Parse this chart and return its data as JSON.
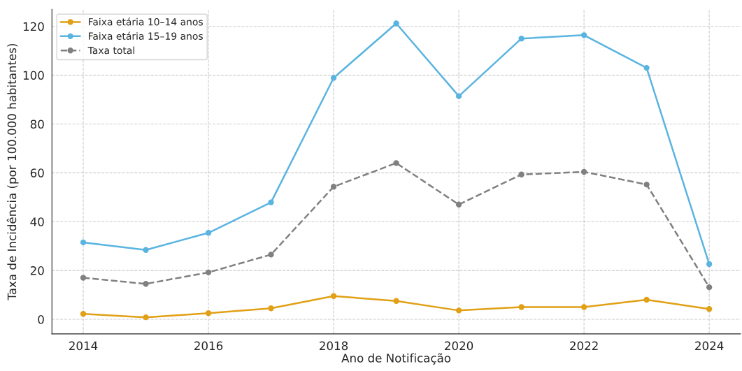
{
  "chart_data": {
    "type": "line",
    "xlabel": "Ano de Notificação",
    "ylabel": "Taxa de Incidência (por 100.000 habitantes)",
    "x": [
      2014,
      2015,
      2016,
      2017,
      2018,
      2019,
      2020,
      2021,
      2022,
      2023,
      2024
    ],
    "series": [
      {
        "name": "Faixa etária 10–14 anos",
        "color": "#e1a015",
        "values": [
          2.2,
          0.8,
          2.5,
          4.5,
          9.5,
          7.5,
          3.6,
          5,
          5,
          8,
          4.2
        ]
      },
      {
        "name": "Faixa etária 15–19 anos",
        "color": "#5ab4e0",
        "values": [
          31.5,
          28.4,
          35.4,
          47.9,
          98.9,
          121.2,
          91.4,
          115,
          116.4,
          103,
          22.6
        ]
      },
      {
        "name": "Taxa total",
        "color": "#808080",
        "line_style": "dashed",
        "values": [
          17,
          14.5,
          19.2,
          26.5,
          54.3,
          64,
          47,
          59.3,
          60.4,
          55.2,
          13.1
        ]
      }
    ],
    "marker": "circle",
    "line_style": "solid",
    "xlim": [
      2013.5,
      2024.5
    ],
    "xticks": [
      2014,
      2016,
      2018,
      2020,
      2022,
      2024
    ],
    "ylim": [
      -6,
      127
    ],
    "yticks": [
      0,
      20,
      40,
      60,
      80,
      100,
      120
    ],
    "grid": true,
    "legend": "top left"
  }
}
